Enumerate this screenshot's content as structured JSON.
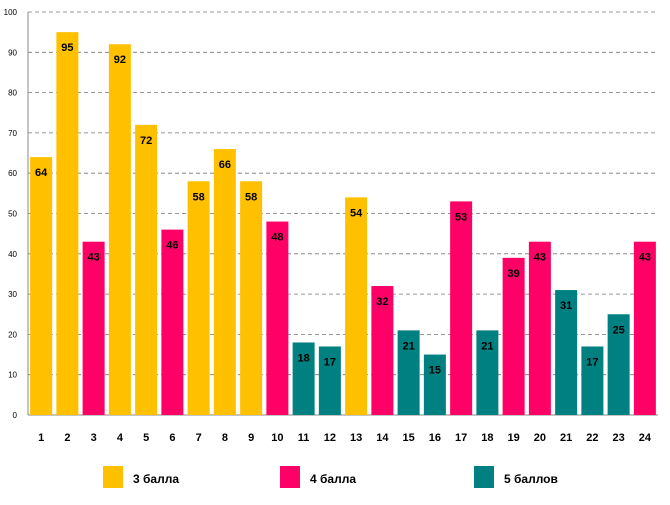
{
  "chart_data": {
    "type": "bar",
    "title": "",
    "xlabel": "",
    "ylabel": "",
    "ylim": [
      0,
      100
    ],
    "yticks": [
      0,
      10,
      20,
      30,
      40,
      50,
      60,
      70,
      80,
      90,
      100
    ],
    "grid": true,
    "categories": [
      "1",
      "2",
      "3",
      "4",
      "5",
      "6",
      "7",
      "8",
      "9",
      "10",
      "11",
      "12",
      "13",
      "14",
      "15",
      "16",
      "17",
      "18",
      "19",
      "20",
      "21",
      "22",
      "23",
      "24"
    ],
    "values": [
      64,
      95,
      43,
      92,
      72,
      46,
      58,
      66,
      58,
      48,
      18,
      17,
      54,
      32,
      21,
      15,
      53,
      21,
      39,
      43,
      31,
      17,
      25,
      43
    ],
    "groups": [
      "3",
      "3",
      "4",
      "3",
      "3",
      "4",
      "3",
      "3",
      "3",
      "4",
      "5",
      "5",
      "3",
      "4",
      "5",
      "5",
      "4",
      "5",
      "4",
      "4",
      "5",
      "5",
      "5",
      "4"
    ],
    "legend": [
      {
        "key": "3",
        "label": "3 балла",
        "color": "#FFC000"
      },
      {
        "key": "4",
        "label": "4 балла",
        "color": "#FF0066"
      },
      {
        "key": "5",
        "label": "5 баллов",
        "color": "#008080"
      }
    ],
    "legend_position": "bottom"
  }
}
